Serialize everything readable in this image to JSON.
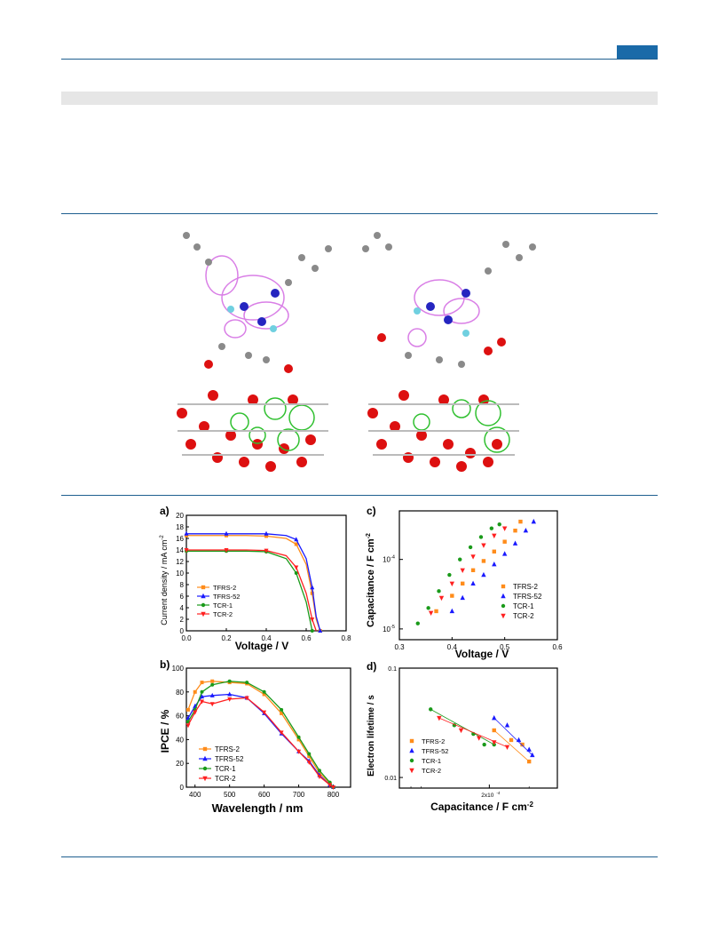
{
  "colors": {
    "rule": "#1f5f8f",
    "tab": "#1a6aa8",
    "band": "#e6e6e6",
    "orange": "#ff8c1a",
    "blue": "#1a1aff",
    "green": "#1a9a1a",
    "red": "#ff2020"
  },
  "panel_a": {
    "letter": "a)",
    "xlabel": "Voltage / V",
    "ylabel": "Current density / mA cm",
    "ylabel_sup": "-2",
    "xticks": [
      "0.0",
      "0.2",
      "0.4",
      "0.6",
      "0.8"
    ],
    "yticks": [
      "0",
      "2",
      "4",
      "6",
      "8",
      "10",
      "12",
      "14",
      "16",
      "18",
      "20"
    ],
    "legend": [
      "TFRS-2",
      "TFRS-52",
      "TCR-1",
      "TCR-2"
    ]
  },
  "panel_b": {
    "letter": "b)",
    "xlabel": "Wavelength / nm",
    "ylabel": "IPCE / %",
    "xticks": [
      "400",
      "500",
      "600",
      "700",
      "800"
    ],
    "yticks": [
      "0",
      "20",
      "40",
      "60",
      "80",
      "100"
    ],
    "legend": [
      "TFRS-2",
      "TFRS-52",
      "TCR-1",
      "TCR-2"
    ]
  },
  "panel_c": {
    "letter": "c)",
    "xlabel": "Voltage / V",
    "ylabel": "Capacitance / F cm",
    "ylabel_sup": "-2",
    "xticks": [
      "0.3",
      "0.4",
      "0.5",
      "0.6"
    ],
    "yticks_base": [
      "10",
      "10"
    ],
    "yticks_exp": [
      "-4",
      "-5"
    ],
    "legend": [
      "TFRS-2",
      "TFRS-52",
      "TCR-1",
      "TCR-2"
    ]
  },
  "panel_d": {
    "letter": "d)",
    "xlabel": "Capacitance / F cm",
    "xlabel_sup": "-2",
    "ylabel": "Electron lifetime / s",
    "xtick_base": "2x10",
    "xtick_exp": "-4",
    "yticks": [
      "0.1",
      "0.01"
    ],
    "legend": [
      "TFRS-2",
      "TFRS-52",
      "TCR-1",
      "TCR-2"
    ]
  },
  "chart_data": [
    {
      "type": "line",
      "panel": "a",
      "x": [
        0.0,
        0.1,
        0.2,
        0.3,
        0.4,
        0.5,
        0.55,
        0.6,
        0.63,
        0.65,
        0.67
      ],
      "series": [
        {
          "name": "TFRS-2",
          "values": [
            16.5,
            16.5,
            16.5,
            16.5,
            16.4,
            16.0,
            15.0,
            11.5,
            6.5,
            2.0,
            0
          ]
        },
        {
          "name": "TFRS-52",
          "values": [
            16.8,
            16.8,
            16.8,
            16.8,
            16.8,
            16.5,
            15.8,
            12.5,
            7.5,
            2.5,
            0
          ]
        },
        {
          "name": "TCR-1",
          "values": [
            13.8,
            13.8,
            13.8,
            13.8,
            13.7,
            12.5,
            10.0,
            5.0,
            0,
            null,
            null
          ]
        },
        {
          "name": "TCR-2",
          "values": [
            14.0,
            14.0,
            14.0,
            14.0,
            13.9,
            13.0,
            11.0,
            6.5,
            2.0,
            0,
            null
          ]
        }
      ],
      "xlabel": "Voltage / V",
      "ylabel": "Current density / mA cm-2",
      "xlim": [
        0,
        0.8
      ],
      "ylim": [
        0,
        20
      ]
    },
    {
      "type": "line",
      "panel": "b",
      "x": [
        380,
        400,
        420,
        450,
        500,
        550,
        600,
        650,
        700,
        730,
        760,
        790,
        800
      ],
      "series": [
        {
          "name": "TFRS-2",
          "values": [
            65,
            80,
            88,
            89,
            88,
            87,
            78,
            62,
            40,
            26,
            12,
            3,
            0
          ]
        },
        {
          "name": "TFRS-52",
          "values": [
            58,
            68,
            76,
            77,
            78,
            75,
            62,
            45,
            30,
            22,
            10,
            2,
            0
          ]
        },
        {
          "name": "TCR-1",
          "values": [
            55,
            65,
            80,
            86,
            89,
            88,
            80,
            65,
            42,
            28,
            14,
            4,
            0
          ]
        },
        {
          "name": "TCR-2",
          "values": [
            52,
            63,
            72,
            70,
            74,
            75,
            63,
            46,
            30,
            21,
            9,
            2,
            0
          ]
        }
      ],
      "xlabel": "Wavelength / nm",
      "ylabel": "IPCE / %",
      "xlim": [
        375,
        850
      ],
      "ylim": [
        0,
        100
      ]
    },
    {
      "type": "scatter",
      "panel": "c",
      "yscale": "log",
      "series": [
        {
          "name": "TFRS-2",
          "x": [
            0.37,
            0.4,
            0.42,
            0.44,
            0.46,
            0.48,
            0.5,
            0.52,
            0.53
          ],
          "y": [
            1.8e-05,
            3e-05,
            4.5e-05,
            7e-05,
            9.5e-05,
            0.00013,
            0.00018,
            0.00026,
            0.00035
          ]
        },
        {
          "name": "TFRS-52",
          "x": [
            0.4,
            0.42,
            0.44,
            0.46,
            0.48,
            0.5,
            0.52,
            0.54,
            0.555
          ],
          "y": [
            1.8e-05,
            2.8e-05,
            4.5e-05,
            6e-05,
            8.5e-05,
            0.00012,
            0.00017,
            0.00026,
            0.00035
          ]
        },
        {
          "name": "TCR-1",
          "x": [
            0.335,
            0.355,
            0.375,
            0.395,
            0.415,
            0.435,
            0.455,
            0.475,
            0.49
          ],
          "y": [
            1.2e-05,
            2e-05,
            3.5e-05,
            6e-05,
            0.0001,
            0.00015,
            0.00021,
            0.00028,
            0.00032
          ]
        },
        {
          "name": "TCR-2",
          "x": [
            0.36,
            0.38,
            0.4,
            0.42,
            0.44,
            0.46,
            0.48,
            0.5
          ],
          "y": [
            1.7e-05,
            2.8e-05,
            4.5e-05,
            7e-05,
            0.00011,
            0.00016,
            0.00022,
            0.00028
          ]
        }
      ],
      "xlabel": "Voltage / V",
      "ylabel": "Capacitance / F cm-2",
      "xlim": [
        0.3,
        0.6
      ],
      "ylim": [
        7e-06,
        0.0005
      ]
    },
    {
      "type": "scatter",
      "panel": "d",
      "xscale": "log",
      "yscale": "log",
      "series": [
        {
          "name": "TFRS-2",
          "x": [
            0.00021,
            0.00025,
            0.00028,
            0.0003
          ],
          "y": [
            0.027,
            0.022,
            0.02,
            0.014
          ]
        },
        {
          "name": "TFRS-52",
          "x": [
            0.00021,
            0.00024,
            0.00027,
            0.0003,
            0.00031
          ],
          "y": [
            0.035,
            0.03,
            0.022,
            0.018,
            0.016
          ]
        },
        {
          "name": "TCR-1",
          "x": [
            0.00011,
            0.00014,
            0.00017,
            0.00019,
            0.00021
          ],
          "y": [
            0.042,
            0.03,
            0.025,
            0.02,
            0.02
          ]
        },
        {
          "name": "TCR-2",
          "x": [
            0.00012,
            0.00015,
            0.00018,
            0.00021,
            0.00024
          ],
          "y": [
            0.035,
            0.027,
            0.023,
            0.021,
            0.019
          ]
        }
      ],
      "xlabel": "Capacitance / F cm-2",
      "ylabel": "Electron lifetime / s",
      "xlim": [
        8e-05,
        0.0004
      ],
      "ylim": [
        0.008,
        0.1
      ]
    }
  ]
}
